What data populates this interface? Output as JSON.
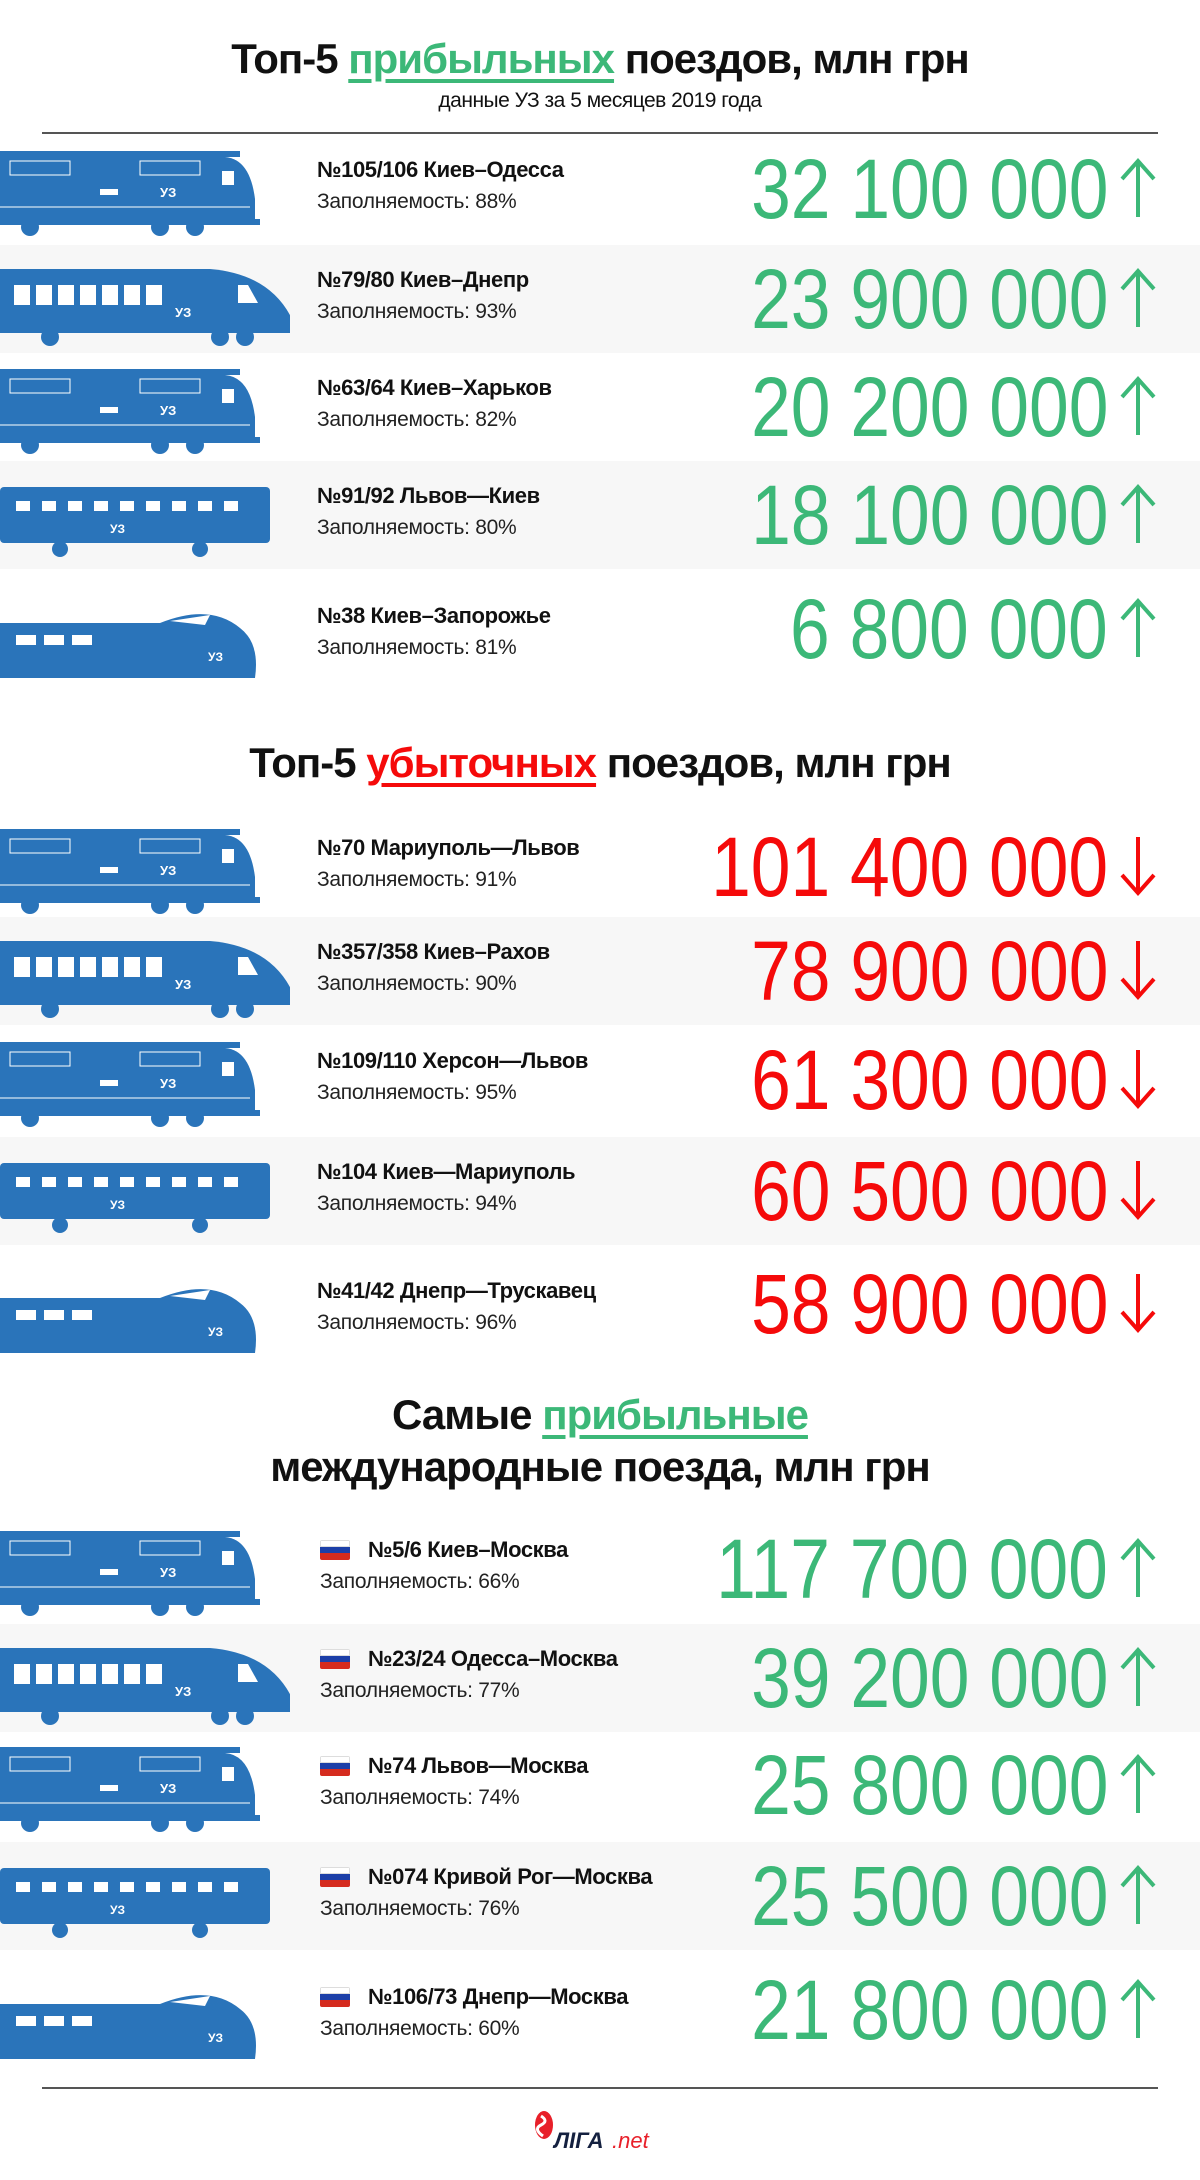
{
  "colors": {
    "profit": "#3cb878",
    "loss": "#f50a0a",
    "train": "#2a74ba",
    "row_alt": "#f7f7f7"
  },
  "sections": [
    {
      "title_before": "Топ-5 ",
      "title_highlight": "прибыльных",
      "title_after": " поездов, млн грн",
      "subtitle": "данные УЗ за 5 месяцев 2019 года",
      "trend": "up",
      "rows": [
        {
          "name": "№105/106 Киев–Одесса",
          "fill": "Заполняемость: 88%",
          "value": "32 100 000"
        },
        {
          "name": "№79/80 Киев–Днепр",
          "fill": "Заполняемость: 93%",
          "value": "23 900 000"
        },
        {
          "name": "№63/64 Киев–Харьков",
          "fill": "Заполняемость: 82%",
          "value": "20 200 000"
        },
        {
          "name": "№91/92 Львов—Киев",
          "fill": "Заполняемость: 80%",
          "value": "18 100 000"
        },
        {
          "name": "№38 Киев–Запорожье",
          "fill": "Заполняемость: 81%",
          "value": "6 800 000"
        }
      ]
    },
    {
      "title_before": "Топ-5 ",
      "title_highlight": "убыточных",
      "title_after": " поездов, млн грн",
      "trend": "down",
      "rows": [
        {
          "name": "№70 Мариуполь—Львов",
          "fill": "Заполняемость: 91%",
          "value": "101 400 000"
        },
        {
          "name": "№357/358 Киев–Рахов",
          "fill": "Заполняемость: 90%",
          "value": "78 900 000"
        },
        {
          "name": "№109/110 Херсон—Львов",
          "fill": "Заполняемость: 95%",
          "value": "61 300 000"
        },
        {
          "name": "№104 Киев—Мариуполь",
          "fill": "Заполняемость: 94%",
          "value": "60 500 000"
        },
        {
          "name": "№41/42 Днепр—Трускавец",
          "fill": "Заполняемость: 96%",
          "value": "58 900 000"
        }
      ]
    },
    {
      "title_before": "Самые ",
      "title_highlight": "прибыльные",
      "title_line2": "международные поезда, млн грн",
      "trend": "up",
      "flag": "russia-flag",
      "rows": [
        {
          "name": "№5/6 Киев–Москва",
          "fill": "Заполняемость: 66%",
          "value": "117 700 000"
        },
        {
          "name": "№23/24 Одесса–Москва",
          "fill": "Заполняемость: 77%",
          "value": "39 200 000"
        },
        {
          "name": "№74 Львов—Москва",
          "fill": "Заполняемость: 74%",
          "value": "25 800 000"
        },
        {
          "name": "№074 Кривой Рог—Москва",
          "fill": "Заполняемость: 76%",
          "value": "25 500 000"
        },
        {
          "name": "№106/73 Днепр—Москва",
          "fill": "Заполняемость: 60%",
          "value": "21 800 000"
        }
      ]
    }
  ],
  "footer": {
    "logo_text": "ЛIГА.net"
  }
}
